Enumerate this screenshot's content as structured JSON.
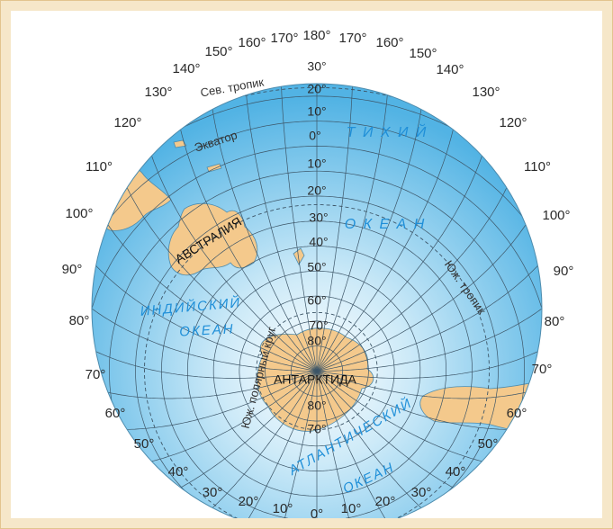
{
  "longitude_labels": [
    "180°",
    "170°",
    "160°",
    "150°",
    "140°",
    "130°",
    "120°",
    "110°",
    "100°",
    "90°",
    "80°",
    "70°",
    "60°",
    "50°",
    "40°",
    "30°",
    "20°",
    "10°",
    "0°",
    "10°",
    "20°",
    "30°",
    "40°",
    "50°",
    "60°",
    "70°",
    "80°",
    "90°",
    "100°",
    "110°",
    "120°",
    "130°",
    "140°",
    "150°",
    "160°",
    "170°"
  ],
  "latitude_labels": [
    "30°",
    "20°",
    "10°",
    "0°",
    "10°",
    "20°",
    "30°",
    "40°",
    "50°",
    "60°",
    "70°",
    "80°",
    "80°",
    "70°"
  ],
  "regions": [
    {
      "label": "АВСТРАЛИЯ"
    },
    {
      "label": "АНТАРКТИДА"
    },
    {
      "label": "ИНДИЙСКИЙ"
    },
    {
      "label": "ОКЕАН"
    },
    {
      "label": "Т И Х И Й"
    },
    {
      "label": "О К Е А Н"
    },
    {
      "label": "АТЛАНТИЧЕСКИЙ"
    },
    {
      "label": "ОКЕАН"
    }
  ],
  "circles": [
    {
      "label": "Сев. тропик"
    },
    {
      "label": "Экватор"
    },
    {
      "label": "Юж. тропик"
    },
    {
      "label": "Юж. полярный круг"
    }
  ]
}
